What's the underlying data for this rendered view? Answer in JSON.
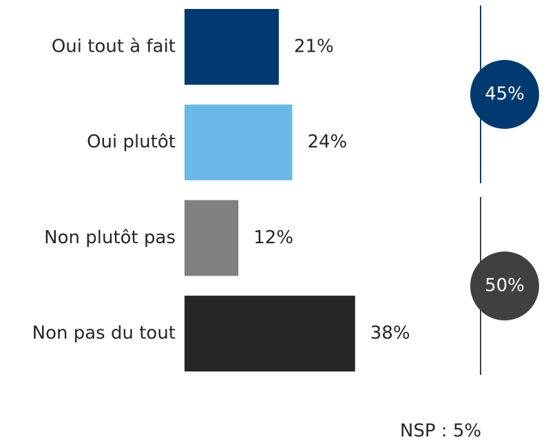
{
  "chart_data": {
    "type": "bar",
    "categories": [
      "Oui tout à fait",
      "Oui plutôt",
      "Non plutôt pas",
      "Non pas du tout"
    ],
    "values": [
      21,
      24,
      12,
      38
    ],
    "value_labels": [
      "21%",
      "24%",
      "12%",
      "38%"
    ],
    "colors": [
      "#003a70",
      "#6ab9e8",
      "#808080",
      "#262626"
    ],
    "label_colors": [
      "#003a70",
      "#6ab9e8",
      "#404040",
      "#1a1a1a"
    ],
    "groups": [
      {
        "value": 45,
        "label": "45%",
        "color": "#003a70"
      },
      {
        "value": 50,
        "label": "50%",
        "color": "#404040"
      }
    ],
    "note": "NSP : 5%"
  }
}
